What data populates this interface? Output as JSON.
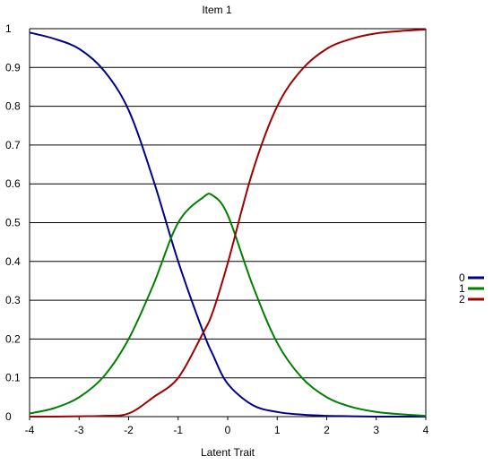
{
  "chart_data": {
    "type": "line",
    "title": "Item 1",
    "xlabel": "Latent Trait",
    "ylabel": "",
    "xlim": [
      -4,
      4
    ],
    "ylim": [
      0,
      1
    ],
    "x_ticks": [
      "-4",
      "-3",
      "-2",
      "-1",
      "0",
      "1",
      "2",
      "3",
      "4"
    ],
    "y_ticks": [
      "0",
      "0.1",
      "0.2",
      "0.3",
      "0.4",
      "0.5",
      "0.6",
      "0.7",
      "0.8",
      "0.9",
      "1"
    ],
    "grid": "horizontal",
    "legend_position": "right",
    "x": [
      -4,
      -3.5,
      -3,
      -2.5,
      -2,
      -1.5,
      -1,
      -0.5,
      -0.3,
      0,
      0.5,
      1,
      1.5,
      2,
      2.5,
      3,
      3.5,
      4
    ],
    "series": [
      {
        "name": "0",
        "color": "#00008b",
        "values": [
          0.99,
          0.974,
          0.948,
          0.892,
          0.79,
          0.61,
          0.4,
          0.22,
          0.16,
          0.085,
          0.03,
          0.012,
          0.005,
          0.002,
          0.001,
          0.0,
          0.0,
          0.0
        ]
      },
      {
        "name": "1",
        "color": "#008000",
        "values": [
          0.008,
          0.022,
          0.05,
          0.104,
          0.2,
          0.34,
          0.5,
          0.565,
          0.57,
          0.52,
          0.34,
          0.19,
          0.1,
          0.05,
          0.025,
          0.012,
          0.006,
          0.002
        ]
      },
      {
        "name": "2",
        "color": "#a00000",
        "values": [
          0.0,
          0.0,
          0.001,
          0.002,
          0.008,
          0.05,
          0.1,
          0.215,
          0.27,
          0.395,
          0.63,
          0.8,
          0.895,
          0.948,
          0.974,
          0.988,
          0.994,
          0.998
        ]
      }
    ]
  }
}
